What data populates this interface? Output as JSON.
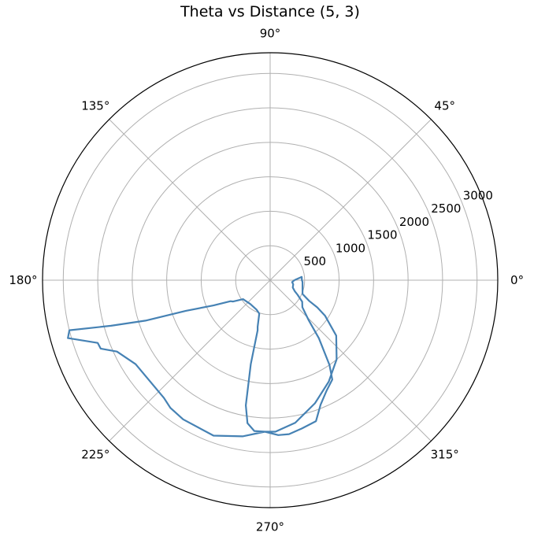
{
  "chart_data": {
    "type": "polar-line",
    "title": "Theta vs Distance (5, 3)",
    "theta_ticks": [
      "0°",
      "45°",
      "90°",
      "135°",
      "180°",
      "225°",
      "270°",
      "315°"
    ],
    "theta_tick_angles_deg": [
      0,
      45,
      90,
      135,
      180,
      225,
      270,
      315
    ],
    "r_ticks": [
      500,
      1000,
      1500,
      2000,
      2500,
      3000
    ],
    "r_tick_labels": [
      "500",
      "1000",
      "1500",
      "2000",
      "2500",
      "3000"
    ],
    "r_max": 3300,
    "grid": true,
    "series_color": "#4682b4",
    "points": [
      [
        0,
        350
      ],
      [
        -5,
        320
      ],
      [
        -10,
        340
      ],
      [
        -18,
        345
      ],
      [
        -24,
        390
      ],
      [
        -28,
        450
      ],
      [
        -34,
        560
      ],
      [
        -40,
        610
      ],
      [
        -46,
        800
      ],
      [
        -50,
        1100
      ],
      [
        -55,
        1500
      ],
      [
        -58,
        1700
      ],
      [
        -63,
        1800
      ],
      [
        -68,
        1950
      ],
      [
        -72,
        2150
      ],
      [
        -78,
        2200
      ],
      [
        -83,
        2250
      ],
      [
        -87,
        2250
      ],
      [
        -92,
        2200
      ],
      [
        -96,
        2200
      ],
      [
        -99,
        2100
      ],
      [
        -101,
        1850
      ],
      [
        -103,
        1250
      ],
      [
        -104,
        750
      ],
      [
        -105,
        700
      ],
      [
        -108,
        510
      ],
      [
        -115,
        470
      ],
      [
        -130,
        450
      ],
      [
        -145,
        480
      ],
      [
        -150,
        620
      ],
      [
        -152,
        650
      ],
      [
        -156,
        900
      ],
      [
        -160,
        1300
      ],
      [
        -162,
        1900
      ],
      [
        -164,
        2400
      ],
      [
        -166,
        3000
      ],
      [
        -164,
        3050
      ],
      [
        -160,
        2660
      ],
      [
        -158,
        2650
      ],
      [
        -155,
        2450
      ],
      [
        -148,
        2300
      ],
      [
        -132,
        2300
      ],
      [
        -128,
        2350
      ],
      [
        -122,
        2380
      ],
      [
        -110,
        2400
      ],
      [
        -100,
        2300
      ],
      [
        -92,
        2200
      ],
      [
        -88,
        2200
      ],
      [
        -80,
        2100
      ],
      [
        -70,
        1900
      ],
      [
        -60,
        1700
      ],
      [
        -50,
        1500
      ],
      [
        -40,
        1250
      ],
      [
        -33,
        950
      ],
      [
        -30,
        790
      ],
      [
        -28,
        640
      ],
      [
        -23,
        510
      ],
      [
        -12,
        480
      ],
      [
        -3,
        470
      ],
      [
        0,
        460
      ],
      [
        3,
        460
      ],
      [
        6,
        460
      ],
      [
        0,
        350
      ]
    ]
  }
}
